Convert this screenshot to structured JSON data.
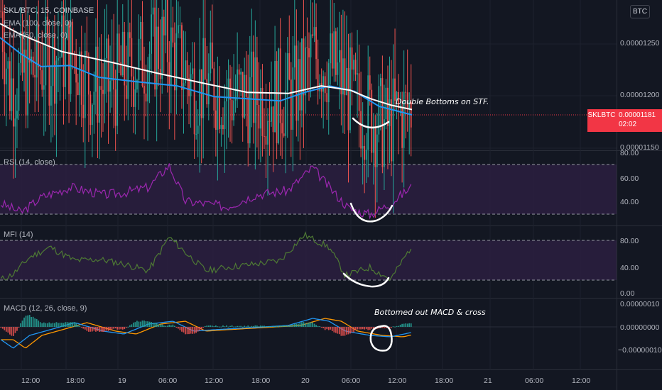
{
  "header": {
    "symbol_line": "SKL/BTC, 15, COINBASE",
    "ema100_label": "EMA (100, close, 0)",
    "ema50_label": "EMA (50, close, 0)",
    "currency_button": "BTC"
  },
  "price_tag": {
    "symbol": "SKLBTC",
    "price": "0.00001181",
    "countdown": "02:02"
  },
  "colors": {
    "up": "#26a69a",
    "down": "#ef5350",
    "ema100": "#ffffff",
    "ema50": "#2196f3",
    "rsi": "#9c27b0",
    "mfi": "#4e7a34",
    "band": "#2a1e3e",
    "macd": "#2196f3",
    "signal": "#ff9800"
  },
  "chart_data": [
    {
      "type": "candlestick",
      "panel": "price",
      "yticks": [
        "0.00001250",
        "0.00001200",
        "0.00001150"
      ],
      "ylim": [
        1.15e-05,
        1.29e-05
      ],
      "ema": [
        {
          "name": "EMA (100, close, 0)",
          "points": [
            [
              0,
              1.268e-05
            ],
            [
              0.05,
              1.258e-05
            ],
            [
              0.15,
              1.242e-05
            ],
            [
              0.27,
              1.232e-05
            ],
            [
              0.38,
              1.222e-05
            ],
            [
              0.5,
              1.212e-05
            ],
            [
              0.6,
              1.204e-05
            ],
            [
              0.7,
              1.203e-05
            ],
            [
              0.78,
              1.21e-05
            ],
            [
              0.85,
              1.206e-05
            ],
            [
              0.9,
              1.198e-05
            ],
            [
              0.95,
              1.192e-05
            ],
            [
              1,
              1.188e-05
            ]
          ]
        },
        {
          "name": "EMA (50, close, 0)",
          "points": [
            [
              0,
              1.255e-05
            ],
            [
              0.05,
              1.24e-05
            ],
            [
              0.1,
              1.228e-05
            ],
            [
              0.17,
              1.229e-05
            ],
            [
              0.24,
              1.218e-05
            ],
            [
              0.33,
              1.214e-05
            ],
            [
              0.43,
              1.21e-05
            ],
            [
              0.52,
              1.2e-05
            ],
            [
              0.6,
              1.198e-05
            ],
            [
              0.68,
              1.196e-05
            ],
            [
              0.74,
              1.204e-05
            ],
            [
              0.8,
              1.21e-05
            ],
            [
              0.86,
              1.205e-05
            ],
            [
              0.92,
              1.191e-05
            ],
            [
              1,
              1.183e-05
            ]
          ]
        }
      ],
      "annotation": "Double Bottoms on STF."
    },
    {
      "type": "line",
      "panel": "RSI",
      "label": "RSI (14, close)",
      "yticks": [
        "80.00",
        "60.00",
        "40.00"
      ],
      "bands": [
        70,
        30
      ]
    },
    {
      "type": "line",
      "panel": "MFI",
      "label": "MFI (14)",
      "yticks": [
        "80.00",
        "40.00",
        "0.00"
      ],
      "bands": [
        80,
        20
      ]
    },
    {
      "type": "histogram+line",
      "panel": "MACD",
      "label": "MACD (12, 26, close, 9)",
      "yticks": [
        "0.00000010",
        "0.00000000",
        "−0.00000010"
      ],
      "annotation": "Bottomed out MACD & cross"
    }
  ],
  "x_axis": {
    "ticks": [
      "12:00",
      "18:00",
      "19",
      "06:00",
      "12:00",
      "18:00",
      "20",
      "06:00",
      "12:00",
      "18:00",
      "21",
      "06:00",
      "12:00"
    ]
  }
}
